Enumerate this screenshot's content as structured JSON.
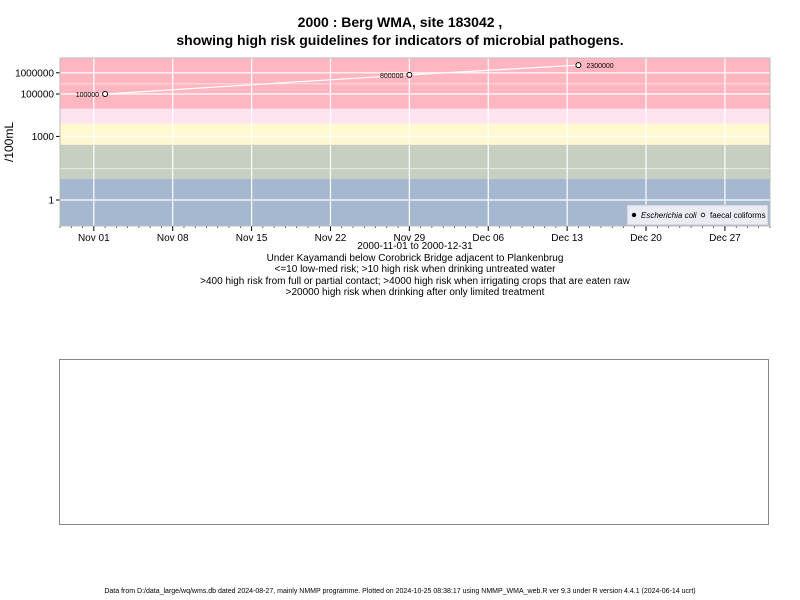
{
  "chart_data": {
    "type": "scatter",
    "title": "2000 : Berg WMA, site 183042 ,",
    "subtitle": "showing high risk guidelines for indicators of microbial pathogens.",
    "ylabel": "/100mL",
    "y_scale": "log10",
    "y_ticks": [
      {
        "value": 1,
        "label": "1"
      },
      {
        "value": 1000,
        "label": "1000"
      },
      {
        "value": 100000,
        "label": "100000"
      },
      {
        "value": 1000000,
        "label": "1000000"
      }
    ],
    "x_ticks": [
      "Nov 01",
      "Nov 08",
      "Nov 15",
      "Nov 22",
      "Nov 29",
      "Dec 06",
      "Dec 13",
      "Dec 20",
      "Dec 27"
    ],
    "x_tick_dates": [
      "2000-11-01",
      "2000-11-08",
      "2000-11-15",
      "2000-11-22",
      "2000-11-29",
      "2000-12-06",
      "2000-12-13",
      "2000-12-20",
      "2000-12-27"
    ],
    "xlim": [
      "2000-10-29",
      "2000-12-31"
    ],
    "grid": true,
    "bands": [
      {
        "from": 20000,
        "to": 10000000,
        "color": "#ffb6c1"
      },
      {
        "from": 4000,
        "to": 20000,
        "color": "#ffe4f0"
      },
      {
        "from": 400,
        "to": 4000,
        "color": "#fff8d0"
      },
      {
        "from": 10,
        "to": 400,
        "color": "#c7d0c0"
      },
      {
        "from": 0.01,
        "to": 10,
        "color": "#a6b8d0"
      }
    ],
    "series": [
      {
        "name": "Escherichia coli",
        "marker": "filled",
        "points": []
      },
      {
        "name": "faecal coliforms",
        "marker": "open",
        "points": [
          {
            "x": "2000-11-02",
            "y": 100000,
            "label": "100000"
          },
          {
            "x": "2000-11-29",
            "y": 800000,
            "label": "800000"
          },
          {
            "x": "2000-12-14",
            "y": 2300000,
            "label": "2300000"
          }
        ]
      }
    ],
    "legend_position": "bottom-right"
  },
  "captions": [
    "2000-11-01 to 2000-12-31",
    "Under Kayamandi below Corobrick Bridge adjacent to Plankenbrug",
    "<=10 low-med risk; >10 high risk when drinking untreated water",
    ">400 high risk from full or partial contact; >4000 high risk when irrigating crops that are eaten raw",
    ">20000 high risk when drinking after only limited treatment"
  ],
  "footer": "Data from D:/data_large/wq/wms.db dated 2024-08-27, mainly NMMP programme. Plotted on 2024-10-25 08:38:17 using NMMP_WMA_web.R ver 9.3 under R version 4.4.1 (2024-06-14 ucrt)"
}
